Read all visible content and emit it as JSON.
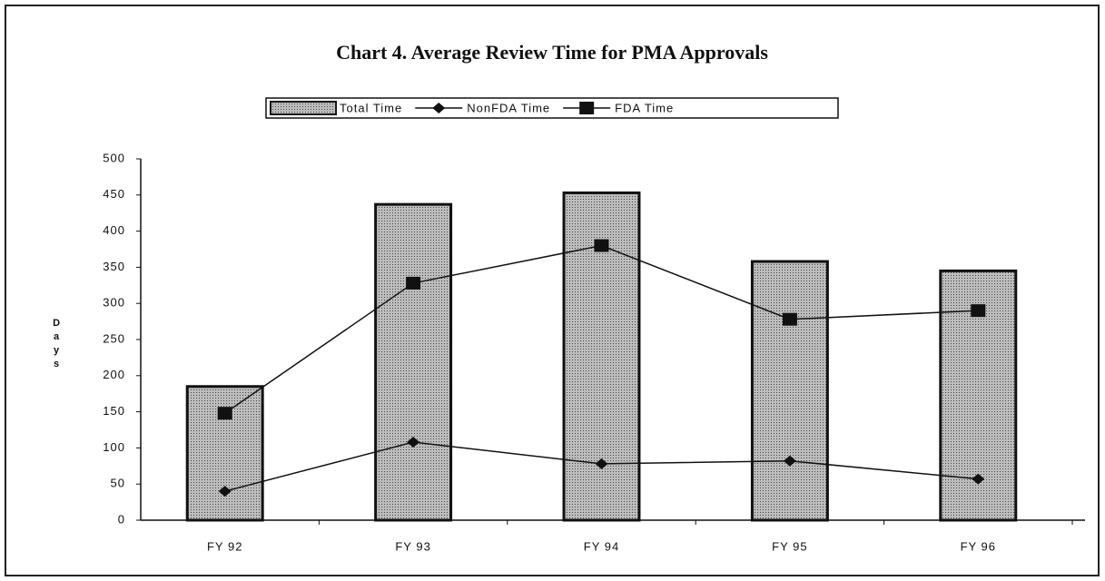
{
  "chart_data": {
    "type": "bar",
    "title": "Chart 4.  Average Review Time for PMA Approvals",
    "y_label": "Days",
    "categories": [
      "FY 92",
      "FY 93",
      "FY 94",
      "FY 95",
      "FY 96"
    ],
    "series": [
      {
        "name": "Total Time",
        "type": "bar",
        "color": "#bdbdbd",
        "values": [
          185,
          437,
          453,
          358,
          345
        ]
      },
      {
        "name": "NonFDA Time",
        "type": "line",
        "marker": "diamond",
        "color": "#111111",
        "values": [
          40,
          108,
          78,
          82,
          57
        ]
      },
      {
        "name": "FDA Time",
        "type": "line",
        "marker": "square",
        "color": "#111111",
        "values": [
          148,
          328,
          380,
          278,
          290
        ]
      }
    ],
    "ylim": [
      0,
      500
    ],
    "yticks": [
      0,
      50,
      100,
      150,
      200,
      250,
      300,
      350,
      400,
      450,
      500
    ],
    "grid": false,
    "legend": "top"
  }
}
